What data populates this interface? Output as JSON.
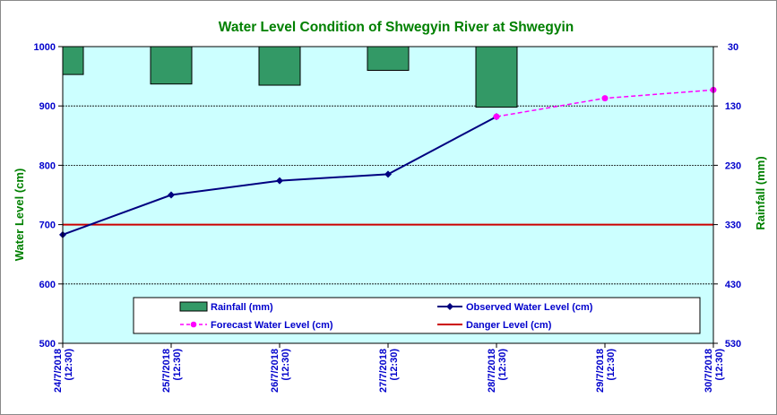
{
  "chart_data": {
    "type": "bar+line",
    "title": "Water Level Condition of Shwegyin  River at  Shwegyin",
    "ylabel": "Water Level (cm)",
    "y2label": "Rainfall (mm)",
    "ylim": [
      500,
      1000
    ],
    "y2lim": [
      30,
      530
    ],
    "y2_inverted": true,
    "yticks": [
      500,
      600,
      700,
      800,
      900,
      1000
    ],
    "y2ticks": [
      30,
      130,
      230,
      330,
      430,
      530
    ],
    "gridlines": [
      600,
      700,
      800,
      900
    ],
    "categories": [
      [
        "24/7/2018",
        "(12:30)"
      ],
      [
        "25/7/2018",
        "(12:30)"
      ],
      [
        "26/7/2018",
        "(12:30)"
      ],
      [
        "27/7/2018",
        "(12:30)"
      ],
      [
        "28/7/2018",
        "(12:30)"
      ],
      [
        "29/7/2018",
        "(12:30)"
      ],
      [
        "30/7/2018",
        "(12:30)"
      ]
    ],
    "series": [
      {
        "name": "Rainfall (mm)",
        "kind": "bar",
        "axis": "right",
        "color": "#339966",
        "values": [
          77,
          93,
          95,
          70,
          132,
          null,
          null
        ]
      },
      {
        "name": "Observed Water Level (cm)",
        "kind": "line",
        "axis": "left",
        "color": "#000080",
        "marker": "diamond",
        "values": [
          683,
          750,
          774,
          785,
          882,
          null,
          null
        ]
      },
      {
        "name": "Forecast Water Level (cm)",
        "kind": "dashed-line",
        "axis": "left",
        "color": "#ff00ff",
        "marker": "circle",
        "values": [
          null,
          null,
          null,
          null,
          882,
          913,
          927
        ]
      },
      {
        "name": "Danger Level (cm)",
        "kind": "hline",
        "axis": "left",
        "color": "#cc0000",
        "value": 700
      }
    ],
    "legend_position": "bottom-center-inside",
    "colors": {
      "title": "#008000",
      "left_axis_labels": "#0000cc",
      "right_axis_labels": "#0000cc",
      "plot_background": "#ccffff",
      "gridline": "#000000"
    }
  }
}
